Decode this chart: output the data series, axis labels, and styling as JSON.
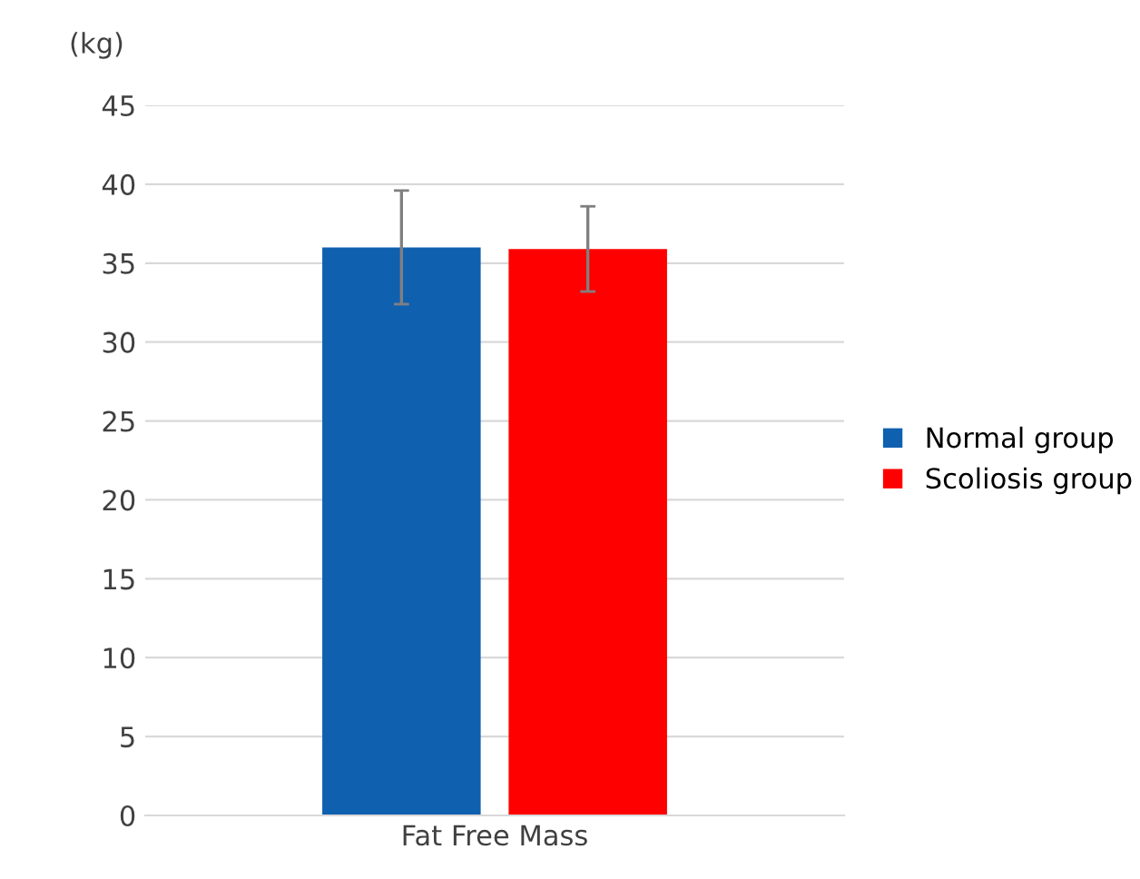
{
  "chart_data": {
    "type": "bar",
    "categories": [
      "Fat Free Mass"
    ],
    "ylabel": "(kg)",
    "series": [
      {
        "name": "Normal group",
        "color": "#1060b0",
        "values": [
          36.0
        ],
        "errors": [
          3.6
        ]
      },
      {
        "name": "Scoliosis group",
        "color": "#ff0000",
        "values": [
          35.9
        ],
        "errors": [
          2.7
        ]
      }
    ],
    "ylim": [
      0,
      45
    ],
    "yticks": [
      0,
      5,
      10,
      15,
      20,
      25,
      30,
      35,
      40,
      45
    ],
    "grid": "y",
    "legend": "right"
  }
}
